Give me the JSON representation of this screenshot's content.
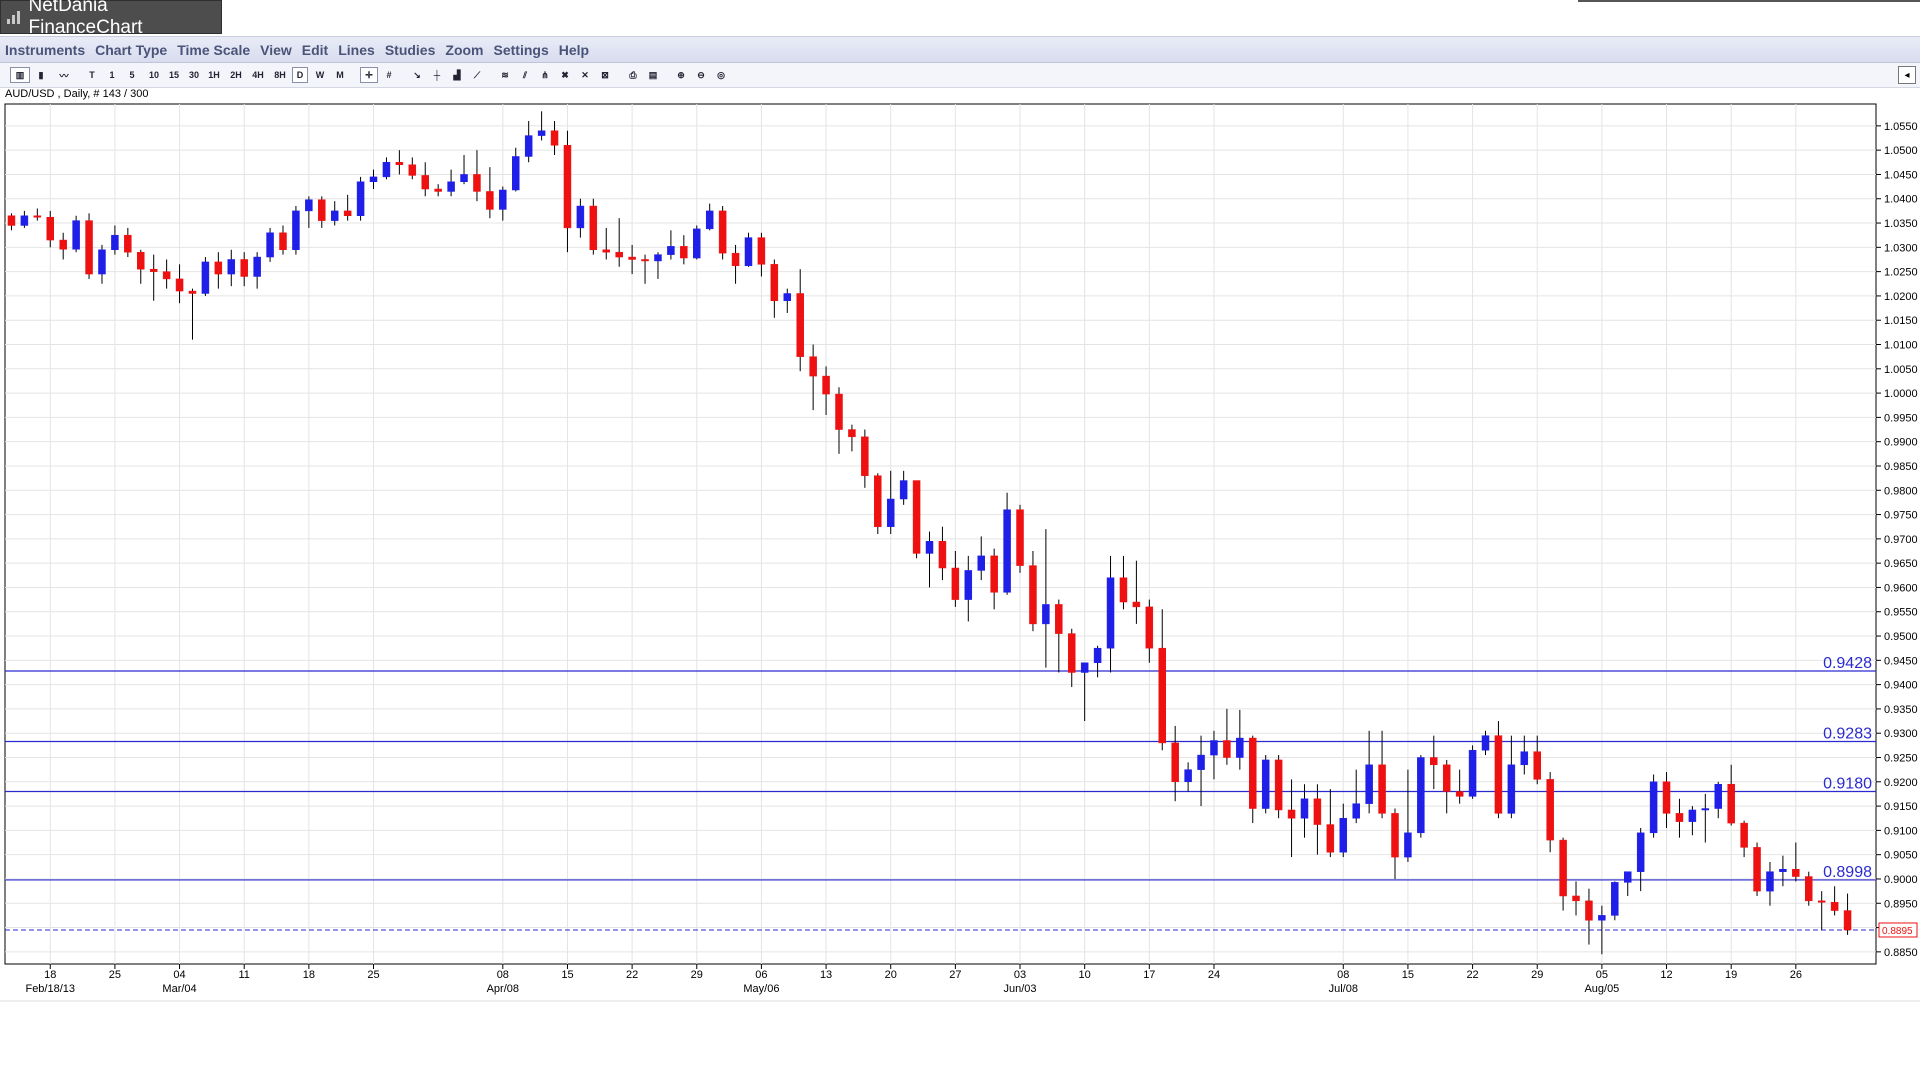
{
  "window": {
    "title": "NetDania FinanceChart"
  },
  "menu": [
    "Instruments",
    "Chart Type",
    "Time Scale",
    "View",
    "Edit",
    "Lines",
    "Studies",
    "Zoom",
    "Settings",
    "Help"
  ],
  "toolbar": {
    "timeframes": [
      "T",
      "1",
      "5",
      "10",
      "15",
      "30",
      "1H",
      "2H",
      "4H",
      "8H",
      "D",
      "W",
      "M"
    ],
    "selected_timeframe": "D",
    "icons": [
      "bar-chart-icon",
      "candle-chart-icon",
      "line-chart-icon",
      "crosshair-icon",
      "grid-icon",
      "cursor-icon",
      "hline-icon",
      "volume-icon",
      "trendline-icon",
      "fibonacci-icon",
      "channel-icon",
      "fork-icon",
      "delete-line-icon",
      "delete-all-icon",
      "delete-drawings-icon",
      "print-icon",
      "print-preview-icon",
      "zoom-in-icon",
      "zoom-out-icon",
      "zoom-reset-icon"
    ]
  },
  "symbol_info": "AUD/USD , Daily, # 143 / 300",
  "colors": {
    "up": "#1f1fe8",
    "down": "#ee1111",
    "hline": "#2a2ad0",
    "grid": "#e4e4e4"
  },
  "chart_data": {
    "type": "candlestick",
    "title": "",
    "series_name": "AUD/USD",
    "ylim": [
      0.8825,
      1.0595
    ],
    "y_ticks": [
      1.055,
      1.05,
      1.045,
      1.04,
      1.035,
      1.03,
      1.025,
      1.02,
      1.015,
      1.01,
      1.005,
      1.0,
      0.995,
      0.99,
      0.985,
      0.98,
      0.975,
      0.97,
      0.965,
      0.96,
      0.955,
      0.95,
      0.945,
      0.94,
      0.935,
      0.93,
      0.925,
      0.92,
      0.915,
      0.91,
      0.905,
      0.9,
      0.895,
      0.89,
      0.885
    ],
    "y_tick_labels": [
      "1.0550",
      "1.0500",
      "1.0450",
      "1.0400",
      "1.0350",
      "1.0300",
      "1.0250",
      "1.0200",
      "1.0150",
      "1.0100",
      "1.0050",
      "1.0000",
      "0.9950",
      "0.9900",
      "0.9850",
      "0.9800",
      "0.9750",
      "0.9700",
      "0.9650",
      "0.9600",
      "0.9550",
      "0.9500",
      "0.9450",
      "0.9400",
      "0.9350",
      "0.9300",
      "0.9250",
      "0.9200",
      "0.9150",
      "0.9100",
      "0.9050",
      "0.9000",
      "0.8950",
      "0.8900",
      "0.8850"
    ],
    "x_ticks": [
      {
        "day": 0,
        "label": "18",
        "sublabel": "Feb/18/13"
      },
      {
        "day": 5,
        "label": "25",
        "sublabel": ""
      },
      {
        "day": 10,
        "label": "04",
        "sublabel": "Mar/04"
      },
      {
        "day": 15,
        "label": "11",
        "sublabel": ""
      },
      {
        "day": 20,
        "label": "18",
        "sublabel": ""
      },
      {
        "day": 25,
        "label": "25",
        "sublabel": ""
      },
      {
        "day": 35,
        "label": "08",
        "sublabel": "Apr/08"
      },
      {
        "day": 40,
        "label": "15",
        "sublabel": ""
      },
      {
        "day": 45,
        "label": "22",
        "sublabel": ""
      },
      {
        "day": 50,
        "label": "29",
        "sublabel": ""
      },
      {
        "day": 55,
        "label": "06",
        "sublabel": "May/06"
      },
      {
        "day": 60,
        "label": "13",
        "sublabel": ""
      },
      {
        "day": 65,
        "label": "20",
        "sublabel": ""
      },
      {
        "day": 70,
        "label": "27",
        "sublabel": ""
      },
      {
        "day": 75,
        "label": "03",
        "sublabel": "Jun/03"
      },
      {
        "day": 80,
        "label": "10",
        "sublabel": ""
      },
      {
        "day": 85,
        "label": "17",
        "sublabel": ""
      },
      {
        "day": 90,
        "label": "24",
        "sublabel": ""
      },
      {
        "day": 100,
        "label": "08",
        "sublabel": "Jul/08"
      },
      {
        "day": 105,
        "label": "15",
        "sublabel": ""
      },
      {
        "day": 110,
        "label": "22",
        "sublabel": ""
      },
      {
        "day": 115,
        "label": "29",
        "sublabel": ""
      },
      {
        "day": 120,
        "label": "05",
        "sublabel": "Aug/05"
      },
      {
        "day": 125,
        "label": "12",
        "sublabel": ""
      },
      {
        "day": 130,
        "label": "19",
        "sublabel": ""
      },
      {
        "day": 135,
        "label": "26",
        "sublabel": ""
      }
    ],
    "x_range": [
      -3.5,
      141.2
    ],
    "horizontal_lines": [
      {
        "value": 0.9428,
        "label": "0.9428"
      },
      {
        "value": 0.9283,
        "label": "0.9283"
      },
      {
        "value": 0.918,
        "label": "0.9180"
      },
      {
        "value": 0.8998,
        "label": "0.8998"
      }
    ],
    "current_price": {
      "value": 0.8895,
      "label": "0.8895"
    },
    "candles": [
      [
        -3,
        1.0365,
        1.037,
        1.0335,
        1.0345
      ],
      [
        -2,
        1.0345,
        1.0375,
        1.034,
        1.0365
      ],
      [
        -1,
        1.0365,
        1.038,
        1.0355,
        1.0362
      ],
      [
        0,
        1.0362,
        1.0375,
        1.03,
        1.0315
      ],
      [
        1,
        1.0315,
        1.033,
        1.0275,
        1.0296
      ],
      [
        2,
        1.0296,
        1.0365,
        1.029,
        1.0355
      ],
      [
        3,
        1.0355,
        1.037,
        1.0235,
        1.0245
      ],
      [
        4,
        1.0245,
        1.0305,
        1.0225,
        1.0295
      ],
      [
        5,
        1.0295,
        1.0345,
        1.0285,
        1.0325
      ],
      [
        6,
        1.0325,
        1.034,
        1.028,
        1.029
      ],
      [
        7,
        1.029,
        1.0295,
        1.0225,
        1.0255
      ],
      [
        8,
        1.0255,
        1.0285,
        1.019,
        1.025
      ],
      [
        9,
        1.025,
        1.0275,
        1.0215,
        1.0235
      ],
      [
        10,
        1.0235,
        1.0265,
        1.0185,
        1.021
      ],
      [
        11,
        1.021,
        1.0215,
        1.011,
        1.0205
      ],
      [
        12,
        1.0205,
        1.028,
        1.02,
        1.027
      ],
      [
        13,
        1.027,
        1.029,
        1.0215,
        1.0245
      ],
      [
        14,
        1.0245,
        1.0295,
        1.022,
        1.0275
      ],
      [
        15,
        1.0275,
        1.029,
        1.022,
        1.024
      ],
      [
        16,
        1.024,
        1.029,
        1.0215,
        1.028
      ],
      [
        17,
        1.028,
        1.034,
        1.027,
        1.033
      ],
      [
        18,
        1.033,
        1.0345,
        1.0285,
        1.0295
      ],
      [
        19,
        1.0295,
        1.0385,
        1.0285,
        1.0375
      ],
      [
        20,
        1.0375,
        1.0405,
        1.034,
        1.0398
      ],
      [
        21,
        1.0398,
        1.0405,
        1.034,
        1.0355
      ],
      [
        22,
        1.0355,
        1.0395,
        1.0345,
        1.0375
      ],
      [
        23,
        1.0375,
        1.0408,
        1.0355,
        1.0365
      ],
      [
        24,
        1.0365,
        1.0445,
        1.0355,
        1.0435
      ],
      [
        25,
        1.0435,
        1.046,
        1.042,
        1.0445
      ],
      [
        26,
        1.0445,
        1.0485,
        1.044,
        1.0475
      ],
      [
        27,
        1.0475,
        1.05,
        1.045,
        1.047
      ],
      [
        28,
        1.047,
        1.0485,
        1.044,
        1.0448
      ],
      [
        29,
        1.0448,
        1.0475,
        1.0405,
        1.042
      ],
      [
        30,
        1.042,
        1.043,
        1.0405,
        1.0415
      ],
      [
        31,
        1.0415,
        1.046,
        1.0405,
        1.0435
      ],
      [
        32,
        1.0435,
        1.049,
        1.043,
        1.045
      ],
      [
        33,
        1.045,
        1.05,
        1.0395,
        1.0415
      ],
      [
        34,
        1.0415,
        1.0465,
        1.036,
        1.0378
      ],
      [
        35,
        1.0378,
        1.0425,
        1.0355,
        1.0418
      ],
      [
        36,
        1.0418,
        1.0505,
        1.0415,
        1.0487
      ],
      [
        37,
        1.0487,
        1.056,
        1.0475,
        1.053
      ],
      [
        38,
        1.053,
        1.058,
        1.052,
        1.054
      ],
      [
        39,
        1.054,
        1.056,
        1.049,
        1.051
      ],
      [
        40,
        1.051,
        1.054,
        1.029,
        1.034
      ],
      [
        41,
        1.034,
        1.04,
        1.032,
        1.0385
      ],
      [
        42,
        1.0385,
        1.04,
        1.0285,
        1.0295
      ],
      [
        43,
        1.0295,
        1.034,
        1.0275,
        1.029
      ],
      [
        44,
        1.029,
        1.036,
        1.026,
        1.028
      ],
      [
        45,
        1.028,
        1.0305,
        1.0245,
        1.0275
      ],
      [
        46,
        1.0275,
        1.0285,
        1.0225,
        1.0272
      ],
      [
        47,
        1.0272,
        1.029,
        1.0235,
        1.0285
      ],
      [
        48,
        1.0285,
        1.0335,
        1.0275,
        1.0302
      ],
      [
        49,
        1.0302,
        1.0325,
        1.0265,
        1.0278
      ],
      [
        50,
        1.0278,
        1.0345,
        1.0275,
        1.0338
      ],
      [
        51,
        1.0338,
        1.039,
        1.0335,
        1.0375
      ],
      [
        52,
        1.0375,
        1.0385,
        1.0275,
        1.0288
      ],
      [
        53,
        1.0288,
        1.0305,
        1.0225,
        1.0262
      ],
      [
        54,
        1.0262,
        1.033,
        1.026,
        1.032
      ],
      [
        55,
        1.032,
        1.033,
        1.024,
        1.0265
      ],
      [
        56,
        1.0265,
        1.0275,
        1.0155,
        1.019
      ],
      [
        57,
        1.019,
        1.0215,
        1.0165,
        1.0205
      ],
      [
        58,
        1.0205,
        1.0255,
        1.0045,
        1.0075
      ],
      [
        59,
        1.0075,
        1.01,
        0.9965,
        1.0035
      ],
      [
        60,
        1.0035,
        1.0055,
        0.9955,
        0.9998
      ],
      [
        61,
        0.9998,
        1.0012,
        0.9875,
        0.9925
      ],
      [
        62,
        0.9925,
        0.9935,
        0.988,
        0.991
      ],
      [
        63,
        0.991,
        0.9925,
        0.9805,
        0.983
      ],
      [
        64,
        0.983,
        0.9835,
        0.971,
        0.9725
      ],
      [
        65,
        0.9725,
        0.984,
        0.971,
        0.9782
      ],
      [
        66,
        0.9782,
        0.984,
        0.977,
        0.982
      ],
      [
        67,
        0.982,
        0.982,
        0.966,
        0.967
      ],
      [
        68,
        0.967,
        0.9715,
        0.96,
        0.9695
      ],
      [
        69,
        0.9695,
        0.9725,
        0.9615,
        0.964
      ],
      [
        70,
        0.964,
        0.9675,
        0.956,
        0.9575
      ],
      [
        71,
        0.9575,
        0.9665,
        0.953,
        0.9635
      ],
      [
        72,
        0.9635,
        0.9705,
        0.9615,
        0.9665
      ],
      [
        73,
        0.9665,
        0.968,
        0.9555,
        0.959
      ],
      [
        74,
        0.959,
        0.9795,
        0.9585,
        0.976
      ],
      [
        75,
        0.976,
        0.977,
        0.963,
        0.9645
      ],
      [
        76,
        0.9645,
        0.9675,
        0.951,
        0.9525
      ],
      [
        77,
        0.9525,
        0.972,
        0.9435,
        0.9565
      ],
      [
        78,
        0.9565,
        0.9575,
        0.9425,
        0.9505
      ],
      [
        79,
        0.9505,
        0.9515,
        0.9395,
        0.9425
      ],
      [
        80,
        0.9425,
        0.9445,
        0.9325,
        0.9445
      ],
      [
        81,
        0.9445,
        0.948,
        0.9415,
        0.9475
      ],
      [
        82,
        0.9475,
        0.9665,
        0.9425,
        0.962
      ],
      [
        83,
        0.962,
        0.9665,
        0.9555,
        0.957
      ],
      [
        84,
        0.957,
        0.9655,
        0.9525,
        0.956
      ],
      [
        85,
        0.956,
        0.9575,
        0.9445,
        0.9475
      ],
      [
        86,
        0.9475,
        0.9555,
        0.9265,
        0.928
      ],
      [
        87,
        0.928,
        0.9315,
        0.916,
        0.92
      ],
      [
        88,
        0.92,
        0.924,
        0.918,
        0.9225
      ],
      [
        89,
        0.9225,
        0.9295,
        0.915,
        0.9255
      ],
      [
        90,
        0.9255,
        0.9305,
        0.9205,
        0.9285
      ],
      [
        91,
        0.9285,
        0.935,
        0.9235,
        0.925
      ],
      [
        92,
        0.925,
        0.9348,
        0.9225,
        0.929
      ],
      [
        93,
        0.929,
        0.9295,
        0.9115,
        0.9145
      ],
      [
        94,
        0.9145,
        0.9255,
        0.9135,
        0.9245
      ],
      [
        95,
        0.9245,
        0.9255,
        0.9125,
        0.9142
      ],
      [
        96,
        0.9142,
        0.9205,
        0.9045,
        0.9125
      ],
      [
        97,
        0.9125,
        0.9195,
        0.9085,
        0.9165
      ],
      [
        98,
        0.9165,
        0.9195,
        0.905,
        0.9112
      ],
      [
        99,
        0.9112,
        0.9185,
        0.9045,
        0.9055
      ],
      [
        100,
        0.9055,
        0.9155,
        0.9045,
        0.9125
      ],
      [
        101,
        0.9125,
        0.9225,
        0.9115,
        0.9155
      ],
      [
        102,
        0.9155,
        0.9305,
        0.9135,
        0.9235
      ],
      [
        103,
        0.9235,
        0.9305,
        0.9125,
        0.9135
      ],
      [
        104,
        0.9135,
        0.9145,
        0.9,
        0.9045
      ],
      [
        105,
        0.9045,
        0.9225,
        0.9035,
        0.9095
      ],
      [
        106,
        0.9095,
        0.9255,
        0.9085,
        0.925
      ],
      [
        107,
        0.925,
        0.9295,
        0.9185,
        0.9235
      ],
      [
        108,
        0.9235,
        0.9245,
        0.9135,
        0.918
      ],
      [
        109,
        0.918,
        0.9225,
        0.9155,
        0.917
      ],
      [
        110,
        0.917,
        0.9275,
        0.9165,
        0.9265
      ],
      [
        111,
        0.9265,
        0.9305,
        0.9255,
        0.9295
      ],
      [
        112,
        0.9295,
        0.9325,
        0.9125,
        0.9135
      ],
      [
        113,
        0.9135,
        0.9295,
        0.9125,
        0.9235
      ],
      [
        114,
        0.9235,
        0.9295,
        0.9215,
        0.9262
      ],
      [
        115,
        0.9262,
        0.9295,
        0.9195,
        0.9205
      ],
      [
        116,
        0.9205,
        0.922,
        0.9055,
        0.908
      ],
      [
        117,
        0.908,
        0.9085,
        0.8935,
        0.8965
      ],
      [
        118,
        0.8965,
        0.8995,
        0.8925,
        0.8955
      ],
      [
        119,
        0.8955,
        0.898,
        0.8865,
        0.8915
      ],
      [
        120,
        0.8915,
        0.8945,
        0.8845,
        0.8925
      ],
      [
        121,
        0.8925,
        0.8995,
        0.8915,
        0.8993
      ],
      [
        122,
        0.8993,
        0.9015,
        0.8965,
        0.9015
      ],
      [
        123,
        0.9015,
        0.9105,
        0.8975,
        0.9095
      ],
      [
        124,
        0.9095,
        0.9215,
        0.9085,
        0.92
      ],
      [
        125,
        0.92,
        0.922,
        0.9105,
        0.9135
      ],
      [
        126,
        0.9135,
        0.9165,
        0.9085,
        0.9118
      ],
      [
        127,
        0.9118,
        0.915,
        0.909,
        0.9142
      ],
      [
        128,
        0.9142,
        0.9175,
        0.9075,
        0.9145
      ],
      [
        129,
        0.9145,
        0.92,
        0.9125,
        0.9195
      ],
      [
        130,
        0.9195,
        0.9235,
        0.911,
        0.9115
      ],
      [
        131,
        0.9115,
        0.912,
        0.9045,
        0.9065
      ],
      [
        132,
        0.9065,
        0.9075,
        0.8965,
        0.8975
      ],
      [
        133,
        0.8975,
        0.9035,
        0.8945,
        0.9015
      ],
      [
        134,
        0.9015,
        0.9048,
        0.8985,
        0.902
      ],
      [
        135,
        0.902,
        0.9075,
        0.8995,
        0.9005
      ],
      [
        136,
        0.9005,
        0.9015,
        0.8945,
        0.8955
      ],
      [
        137,
        0.8955,
        0.8975,
        0.8895,
        0.8952
      ],
      [
        138,
        0.8952,
        0.8985,
        0.8925,
        0.8935
      ],
      [
        139,
        0.8935,
        0.897,
        0.8885,
        0.8895
      ]
    ]
  }
}
